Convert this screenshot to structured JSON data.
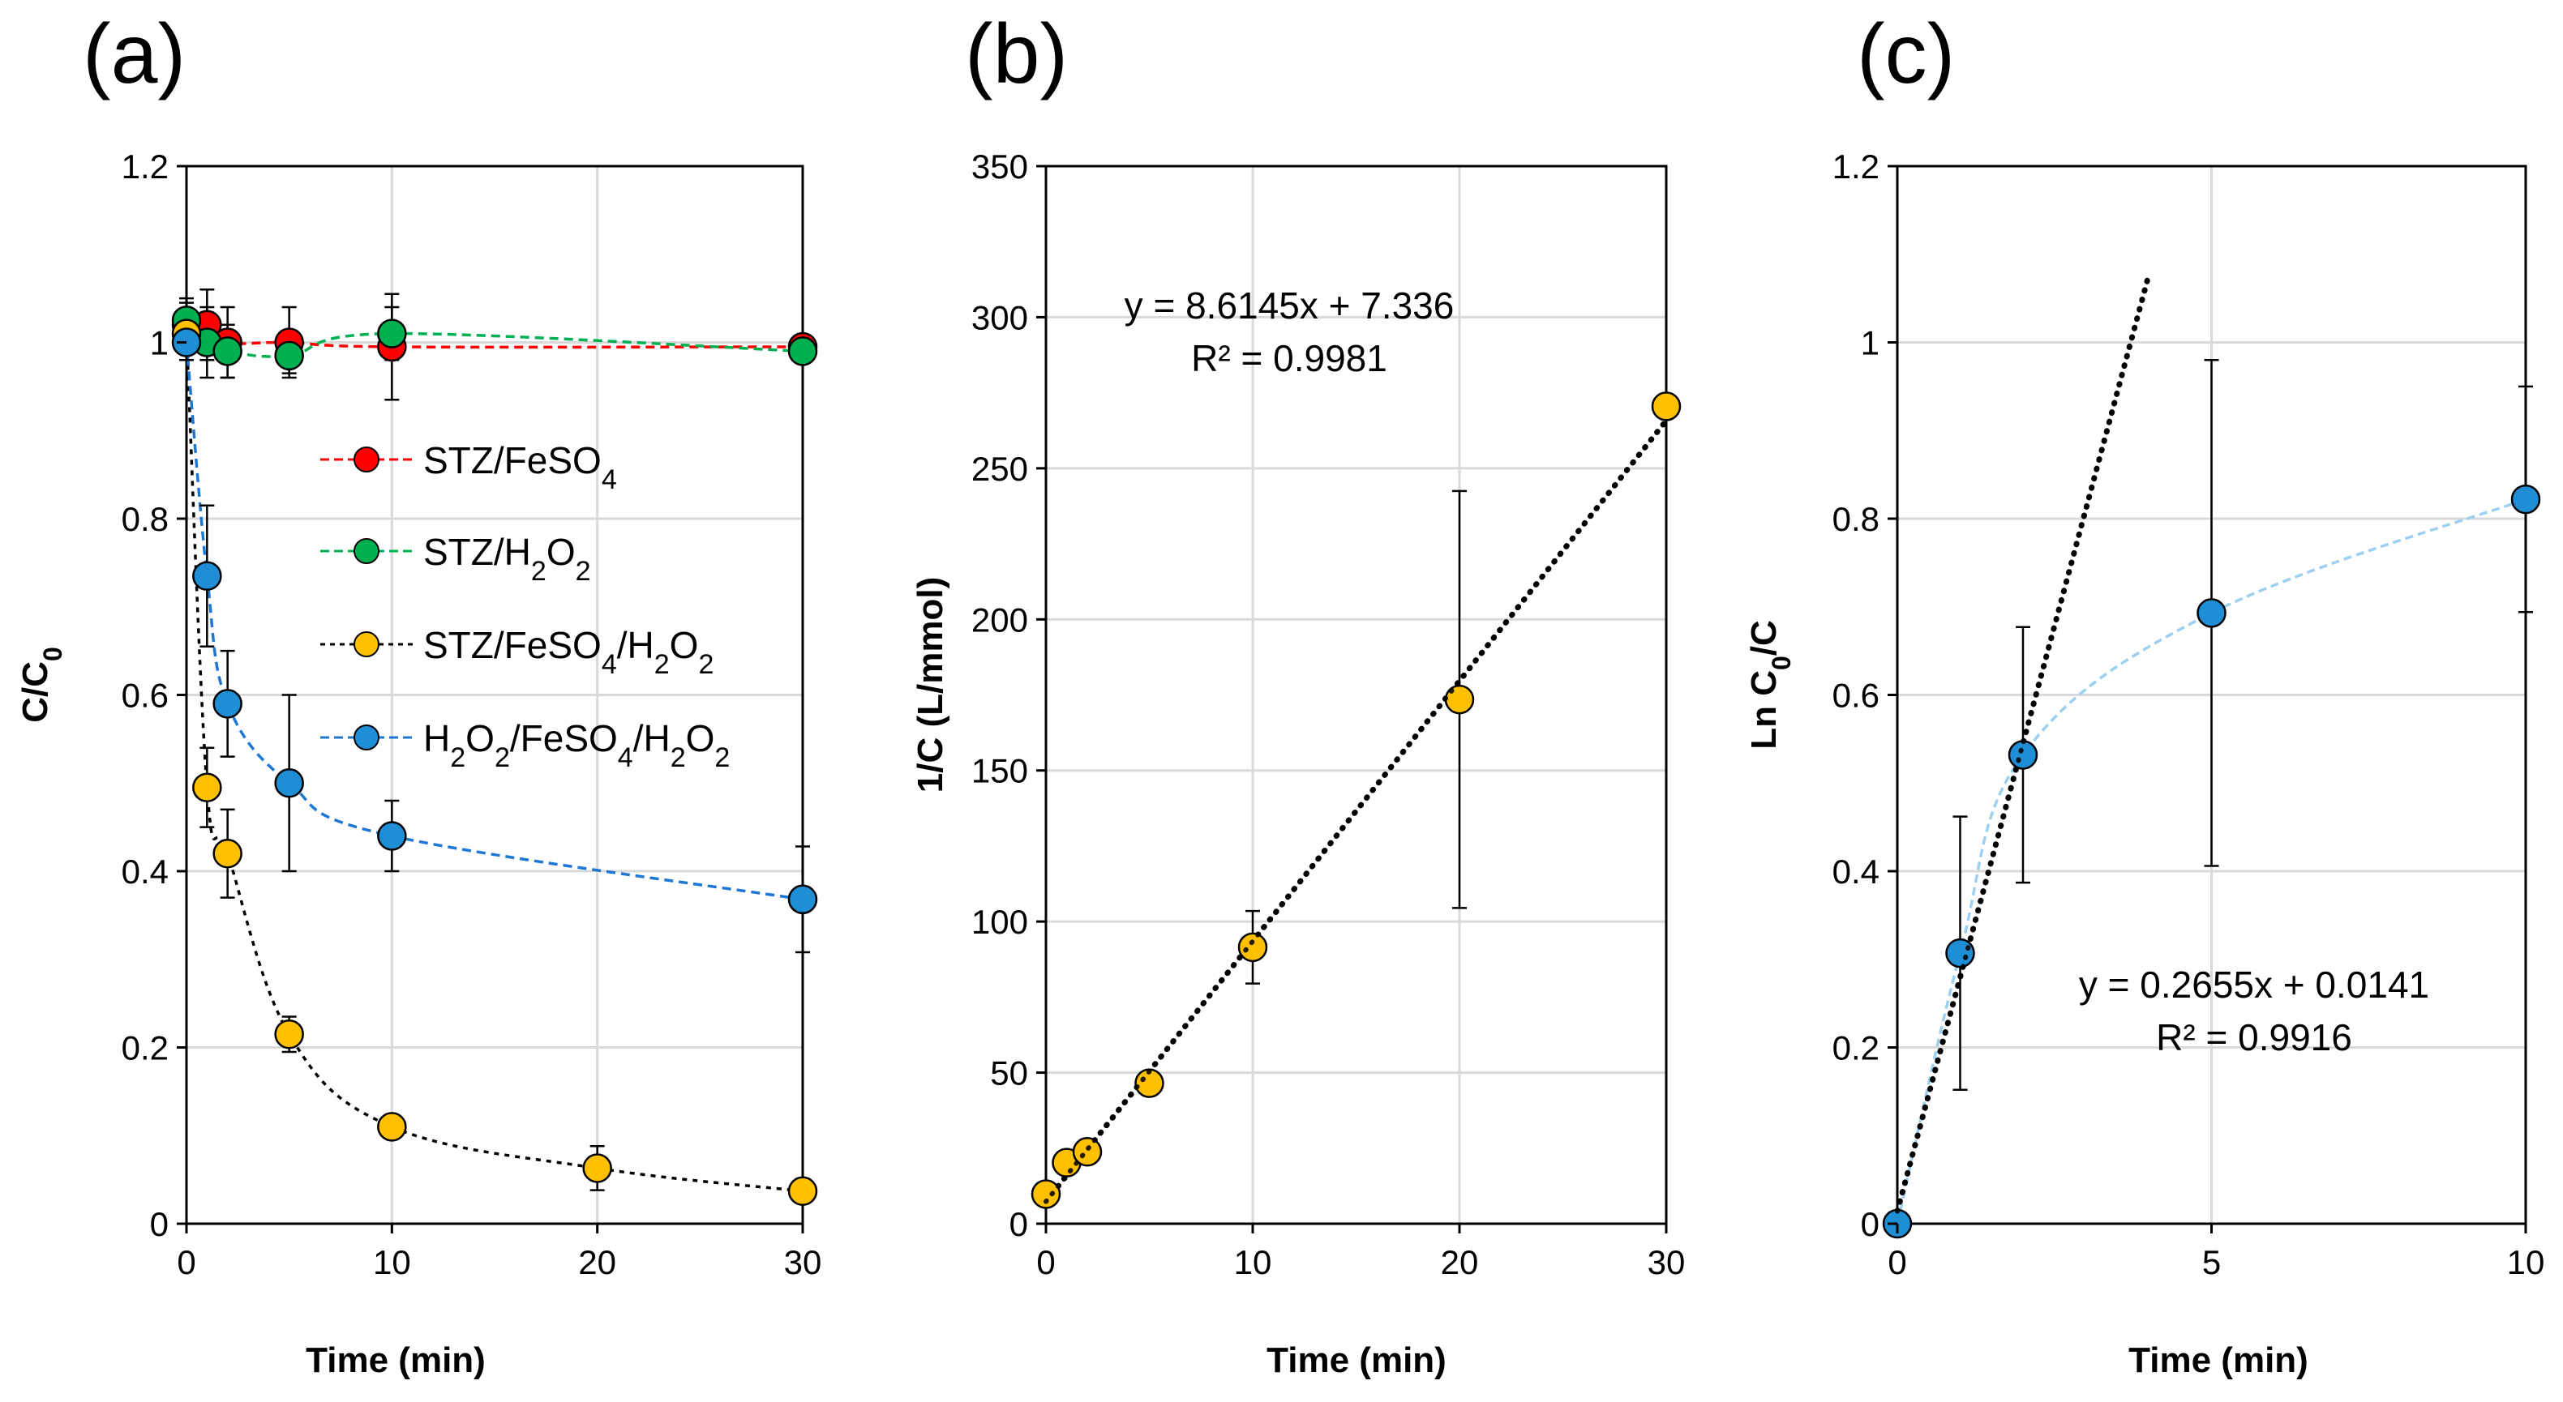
{
  "chart_data": [
    {
      "type": "scatter",
      "panel_label": "(a)",
      "xlabel": "Time (min)",
      "ylabel": "C/C0",
      "xlim": [
        0,
        30
      ],
      "ylim": [
        0,
        1.2
      ],
      "xticks": [
        "0",
        "10",
        "20",
        "30"
      ],
      "yticks": [
        "0",
        "0.2",
        "0.4",
        "0.6",
        "0.8",
        "1",
        "1.2"
      ],
      "grid": true,
      "legend_position": "center",
      "series": [
        {
          "name": "STZ/FeSO4",
          "color": "#ff0000",
          "line_color": "#ff0000",
          "x": [
            0,
            1,
            2,
            5,
            10,
            30
          ],
          "y": [
            1.02,
            1.02,
            1.0,
            1.0,
            0.995,
            0.995
          ],
          "err": [
            0.03,
            0.04,
            0.04,
            0.04,
            0.06,
            0.01
          ]
        },
        {
          "name": "STZ/H2O2",
          "color": "#00b050",
          "line_color": "#00b050",
          "x": [
            0,
            1,
            2,
            5,
            10,
            30
          ],
          "y": [
            1.025,
            1.0,
            0.99,
            0.985,
            1.01,
            0.99
          ],
          "err": [
            0.02,
            0.04,
            0.03,
            0.02,
            0.03,
            0.01
          ]
        },
        {
          "name": "STZ/FeSO4/H2O2",
          "color": "#ffc000",
          "line_color": "#000000",
          "x": [
            0,
            1,
            2,
            5,
            10,
            20,
            30
          ],
          "y": [
            1.01,
            0.495,
            0.42,
            0.215,
            0.11,
            0.063,
            0.037
          ],
          "err": [
            0.01,
            0.045,
            0.05,
            0.02,
            0.01,
            0.025,
            0.01
          ]
        },
        {
          "name": "H2O2/FeSO4/H2O2",
          "color": "#1f8ed4",
          "line_color": "#1f77d4",
          "x": [
            0,
            1,
            2,
            5,
            10,
            30
          ],
          "y": [
            1.0,
            0.735,
            0.59,
            0.5,
            0.44,
            0.368
          ],
          "err": [
            0.02,
            0.08,
            0.06,
            0.1,
            0.04,
            0.06
          ]
        }
      ]
    },
    {
      "type": "scatter",
      "panel_label": "(b)",
      "xlabel": "Time (min)",
      "ylabel": "1/C (L/mmol)",
      "xlim": [
        0,
        30
      ],
      "ylim": [
        0,
        350
      ],
      "xticks": [
        "0",
        "10",
        "20",
        "30"
      ],
      "yticks": [
        "0",
        "50",
        "100",
        "150",
        "200",
        "250",
        "300",
        "350"
      ],
      "grid": true,
      "series": [
        {
          "name": "STZ/FeSO4/H2O2",
          "color": "#ffc000",
          "x": [
            0,
            1,
            2,
            5,
            10,
            20,
            30
          ],
          "y": [
            9.8,
            20.2,
            23.8,
            46.5,
            91.5,
            173.5,
            270.5
          ],
          "err": [
            0,
            0,
            2,
            2,
            12,
            69,
            0
          ]
        }
      ],
      "trendline": {
        "slope": 8.6145,
        "intercept": 7.336,
        "x_range": [
          0,
          30
        ]
      },
      "equation": "y = 8.6145x + 7.336",
      "r_squared": "R² = 0.9981"
    },
    {
      "type": "scatter",
      "panel_label": "(c)",
      "xlabel": "Time (min)",
      "ylabel": "Ln C0/C",
      "xlim": [
        0,
        10
      ],
      "ylim": [
        0,
        1.2
      ],
      "xticks": [
        "0",
        "5",
        "10"
      ],
      "yticks": [
        "0",
        "0.2",
        "0.4",
        "0.6",
        "0.8",
        "1",
        "1.2"
      ],
      "grid": true,
      "series": [
        {
          "name": "Ln C0/C",
          "color": "#1f8ed4",
          "line_color": "#9dcff0",
          "x": [
            0,
            1,
            2,
            5,
            10
          ],
          "y": [
            0.0,
            0.307,
            0.532,
            0.693,
            0.822
          ],
          "err": [
            0,
            0.155,
            0.145,
            0.287,
            0.128
          ]
        }
      ],
      "trendline": {
        "slope": 0.2655,
        "intercept": 0.0141,
        "x_range": [
          0,
          4
        ]
      },
      "equation": "y = 0.2655x + 0.0141",
      "r_squared": "R² = 0.9916"
    }
  ]
}
